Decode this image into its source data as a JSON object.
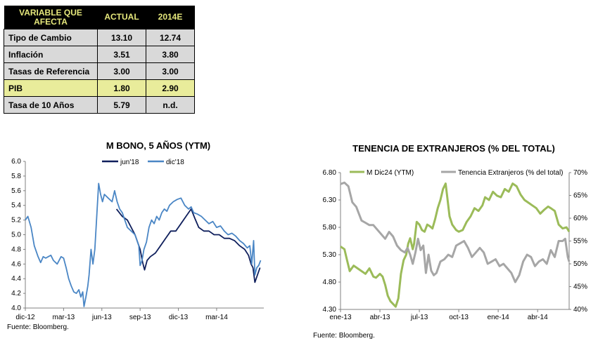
{
  "table": {
    "headers": [
      "VARIABLE QUE AFECTA",
      "ACTUAL",
      "2014E"
    ],
    "rows": [
      {
        "label": "Tipo de Cambio",
        "actual": "13.10",
        "e2014": "12.74",
        "highlight": false
      },
      {
        "label": "Inflación",
        "actual": "3.51",
        "e2014": "3.80",
        "highlight": false
      },
      {
        "label": "Tasas de Referencia",
        "actual": "3.00",
        "e2014": "3.00",
        "highlight": false
      },
      {
        "label": "PIB",
        "actual": "1.80",
        "e2014": "2.90",
        "highlight": true
      },
      {
        "label": "Tasa de 10 Años",
        "actual": "5.79",
        "e2014": "n.d.",
        "highlight": false
      }
    ],
    "colors": {
      "header_bg": "#000000",
      "header_text": "#e6e87c",
      "cell_bg": "#d9d9d9",
      "highlight_bg": "#e9ec9b"
    }
  },
  "chart_data": [
    {
      "type": "line",
      "title": "M BONO, 5 AÑOS (YTM)",
      "source": "Fuente: Bloomberg.",
      "x_tick_labels": [
        "dic-12",
        "mar-13",
        "jun-13",
        "sep-13",
        "dic-13",
        "mar-14"
      ],
      "x_ticks_months": [
        0,
        3,
        6,
        9,
        12,
        15
      ],
      "xlim_months": [
        0,
        18.7
      ],
      "ylim": [
        4.0,
        6.0
      ],
      "y_ticks": [
        "4.0",
        "4.2",
        "4.4",
        "4.6",
        "4.8",
        "5.0",
        "5.2",
        "5.4",
        "5.6",
        "5.8",
        "6.0"
      ],
      "legend_position": "top",
      "series": [
        {
          "name": "jun'18",
          "color": "#0f1f5c",
          "x_months": [
            7.15,
            7.6,
            8.0,
            8.6,
            9.0,
            9.2,
            9.35,
            9.55,
            9.8,
            10.2,
            10.6,
            11.0,
            11.4,
            11.8,
            12.2,
            12.6,
            13.0,
            13.3,
            13.6,
            14.0,
            14.4,
            14.8,
            15.2,
            15.6,
            16.0,
            16.4,
            16.8,
            17.2,
            17.5,
            17.7,
            17.85,
            18.0,
            18.2,
            18.4
          ],
          "values": [
            5.35,
            5.25,
            5.2,
            5.0,
            4.8,
            4.62,
            4.52,
            4.65,
            4.7,
            4.75,
            4.85,
            4.95,
            5.05,
            5.05,
            5.15,
            5.25,
            5.35,
            5.22,
            5.1,
            5.05,
            5.05,
            5.0,
            5.0,
            4.95,
            4.95,
            4.92,
            4.85,
            4.8,
            4.72,
            4.6,
            4.55,
            4.35,
            4.45,
            4.55
          ]
        },
        {
          "name": "dic'18",
          "color": "#4a86c5",
          "x_months": [
            0,
            0.2,
            0.45,
            0.7,
            1.0,
            1.2,
            1.4,
            1.6,
            1.8,
            2.0,
            2.2,
            2.5,
            2.8,
            3.0,
            3.2,
            3.4,
            3.6,
            3.8,
            4.0,
            4.2,
            4.35,
            4.5,
            4.6,
            4.75,
            4.9,
            5.0,
            5.15,
            5.3,
            5.45,
            5.6,
            5.75,
            5.9,
            6.05,
            6.2,
            6.5,
            6.8,
            7.0,
            7.2,
            7.4,
            7.6,
            7.8,
            8.0,
            8.3,
            8.6,
            8.9,
            9.0,
            9.15,
            9.3,
            9.5,
            9.7,
            9.9,
            10.1,
            10.3,
            10.5,
            10.7,
            10.9,
            11.1,
            11.3,
            11.6,
            11.9,
            12.2,
            12.5,
            12.8,
            13.0,
            13.2,
            13.5,
            13.8,
            14.1,
            14.4,
            14.7,
            15.0,
            15.3,
            15.6,
            15.9,
            16.2,
            16.5,
            16.8,
            17.1,
            17.4,
            17.6,
            17.75,
            17.9,
            18.0,
            18.15,
            18.3,
            18.45
          ],
          "values": [
            5.2,
            5.25,
            5.1,
            4.85,
            4.7,
            4.62,
            4.7,
            4.68,
            4.7,
            4.72,
            4.65,
            4.6,
            4.7,
            4.68,
            4.55,
            4.4,
            4.3,
            4.22,
            4.2,
            4.25,
            4.15,
            4.22,
            4.02,
            4.15,
            4.3,
            4.45,
            4.8,
            4.6,
            4.8,
            5.25,
            5.7,
            5.55,
            5.45,
            5.55,
            5.5,
            5.45,
            5.6,
            5.45,
            5.35,
            5.3,
            5.2,
            5.1,
            5.05,
            5.0,
            4.85,
            4.58,
            4.65,
            4.8,
            4.9,
            5.1,
            5.2,
            5.15,
            5.25,
            5.2,
            5.3,
            5.35,
            5.32,
            5.4,
            5.45,
            5.48,
            5.5,
            5.4,
            5.35,
            5.38,
            5.3,
            5.28,
            5.25,
            5.2,
            5.15,
            5.18,
            5.1,
            5.12,
            5.05,
            5.0,
            5.02,
            4.98,
            4.92,
            4.88,
            4.82,
            4.85,
            4.6,
            4.92,
            4.45,
            4.55,
            4.58,
            4.65
          ]
        }
      ]
    },
    {
      "type": "line",
      "title": "TENENCIA DE EXTRANJEROS (% DEL TOTAL)",
      "source": "Fuente: Bloomberg.",
      "x_tick_labels": [
        "ene-13",
        "abr-13",
        "jul-13",
        "oct-13",
        "ene-14",
        "abr-14"
      ],
      "x_ticks_months": [
        0,
        3,
        6,
        9,
        12,
        15
      ],
      "xlim_months": [
        0,
        17.4
      ],
      "ylim_left": [
        4.3,
        6.8
      ],
      "y_ticks_left": [
        "4.30",
        "4.80",
        "5.30",
        "5.80",
        "6.30",
        "6.80"
      ],
      "ylim_right": [
        40,
        70
      ],
      "y_ticks_right": [
        "40%",
        "45%",
        "50%",
        "55%",
        "60%",
        "65%",
        "70%"
      ],
      "legend_position": "top",
      "series": [
        {
          "name": "M Dic24 (YTM)",
          "axis": "left",
          "color": "#9bbb59",
          "x_months": [
            0,
            0.3,
            0.5,
            0.7,
            1.0,
            1.3,
            1.6,
            1.9,
            2.2,
            2.5,
            2.7,
            3.0,
            3.2,
            3.4,
            3.6,
            3.8,
            4.0,
            4.2,
            4.4,
            4.6,
            4.8,
            5.0,
            5.15,
            5.3,
            5.5,
            5.6,
            5.8,
            6.0,
            6.2,
            6.4,
            6.6,
            6.8,
            7.0,
            7.2,
            7.4,
            7.6,
            7.8,
            8.0,
            8.1,
            8.3,
            8.5,
            8.8,
            9.0,
            9.3,
            9.6,
            9.9,
            10.2,
            10.5,
            10.8,
            11.0,
            11.3,
            11.6,
            11.9,
            12.2,
            12.5,
            12.8,
            13.1,
            13.4,
            13.7,
            14.0,
            14.3,
            14.6,
            14.9,
            15.2,
            15.5,
            15.8,
            16.0,
            16.3,
            16.6,
            16.9,
            17.2,
            17.4
          ],
          "values": [
            5.45,
            5.4,
            5.2,
            5.0,
            5.1,
            5.05,
            5.0,
            4.95,
            5.05,
            4.9,
            4.88,
            4.95,
            4.9,
            4.75,
            4.55,
            4.45,
            4.4,
            4.35,
            4.5,
            4.95,
            5.2,
            5.3,
            5.5,
            5.6,
            5.4,
            5.5,
            5.9,
            5.85,
            5.75,
            5.72,
            5.85,
            5.82,
            5.78,
            5.95,
            6.15,
            6.3,
            6.5,
            6.6,
            6.4,
            6.0,
            5.85,
            5.75,
            5.72,
            5.75,
            5.9,
            6.0,
            6.15,
            6.1,
            6.2,
            6.35,
            6.3,
            6.45,
            6.38,
            6.35,
            6.5,
            6.45,
            6.6,
            6.55,
            6.4,
            6.3,
            6.25,
            6.2,
            6.15,
            6.05,
            6.12,
            6.18,
            6.15,
            6.1,
            5.85,
            5.78,
            5.8,
            5.72
          ]
        },
        {
          "name": "Tenencia Extranjeros (% del total)",
          "axis": "right",
          "color": "#a6a6a6",
          "x_months": [
            0,
            0.3,
            0.6,
            0.9,
            1.2,
            1.4,
            1.6,
            1.9,
            2.2,
            2.5,
            2.8,
            3.1,
            3.4,
            3.7,
            4.0,
            4.3,
            4.6,
            4.9,
            5.1,
            5.3,
            5.5,
            5.7,
            5.9,
            6.1,
            6.3,
            6.5,
            6.7,
            6.9,
            7.1,
            7.3,
            7.6,
            7.9,
            8.2,
            8.5,
            8.8,
            9.1,
            9.4,
            9.7,
            10.0,
            10.3,
            10.6,
            10.9,
            11.2,
            11.5,
            11.8,
            12.1,
            12.4,
            12.7,
            13.0,
            13.3,
            13.6,
            13.9,
            14.2,
            14.5,
            14.8,
            15.1,
            15.4,
            15.7,
            16.0,
            16.3,
            16.6,
            16.9,
            17.1,
            17.3,
            17.4
          ],
          "values": [
            67.5,
            67.8,
            67.0,
            63.5,
            62.5,
            61.0,
            59.5,
            59.0,
            58.5,
            58.5,
            57.5,
            56.5,
            55.5,
            57.0,
            56.0,
            54.0,
            53.0,
            52.5,
            53.5,
            52.0,
            50.0,
            52.5,
            55.5,
            53.0,
            54.0,
            48.0,
            52.0,
            48.5,
            47.5,
            48.0,
            50.5,
            51.0,
            52.0,
            51.5,
            54.0,
            54.5,
            55.0,
            53.5,
            51.5,
            52.5,
            53.5,
            52.5,
            50.0,
            50.5,
            51.0,
            49.5,
            50.0,
            49.0,
            48.0,
            46.0,
            47.5,
            50.5,
            52.0,
            51.5,
            49.5,
            50.5,
            51.0,
            50.0,
            53.0,
            51.5,
            55.0,
            55.0,
            55.5,
            51.5,
            50.5
          ]
        }
      ]
    }
  ]
}
